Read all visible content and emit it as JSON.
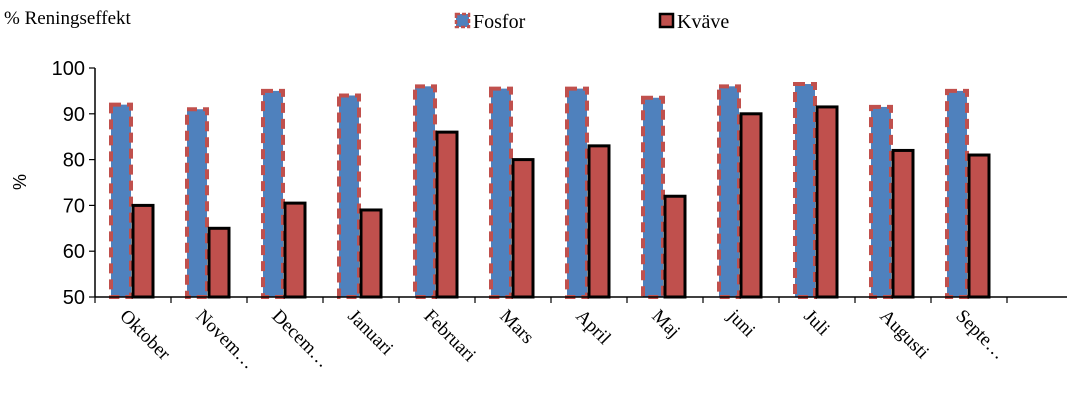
{
  "chart_data": {
    "type": "bar",
    "title": "% Reningseffekt",
    "xlabel": "",
    "ylabel": "%",
    "ylim": [
      50,
      100
    ],
    "yticks": [
      50,
      60,
      70,
      80,
      90,
      100
    ],
    "legend_position": "top",
    "grid": false,
    "categories": [
      "Oktober",
      "Novem…",
      "Decem…",
      "Januari",
      "Februari",
      "Mars",
      "April",
      "Maj",
      "juni",
      "Juli",
      "Augusti",
      "Septe…"
    ],
    "series": [
      {
        "name": "Fosfor",
        "color": "#4F81BD",
        "border_color": "#C0504D",
        "values": [
          92,
          91,
          95,
          94,
          96,
          95.5,
          95.5,
          93.5,
          96,
          96.5,
          91.5,
          95
        ]
      },
      {
        "name": "Kväve",
        "color": "#C0504D",
        "border_color": "#000000",
        "values": [
          70,
          65,
          70.5,
          69,
          86,
          80,
          83,
          72,
          90,
          91.5,
          82,
          81
        ]
      }
    ]
  }
}
